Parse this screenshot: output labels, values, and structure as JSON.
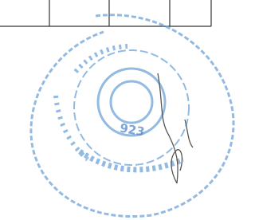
{
  "document": {
    "stamp": {
      "text": "923"
    }
  }
}
